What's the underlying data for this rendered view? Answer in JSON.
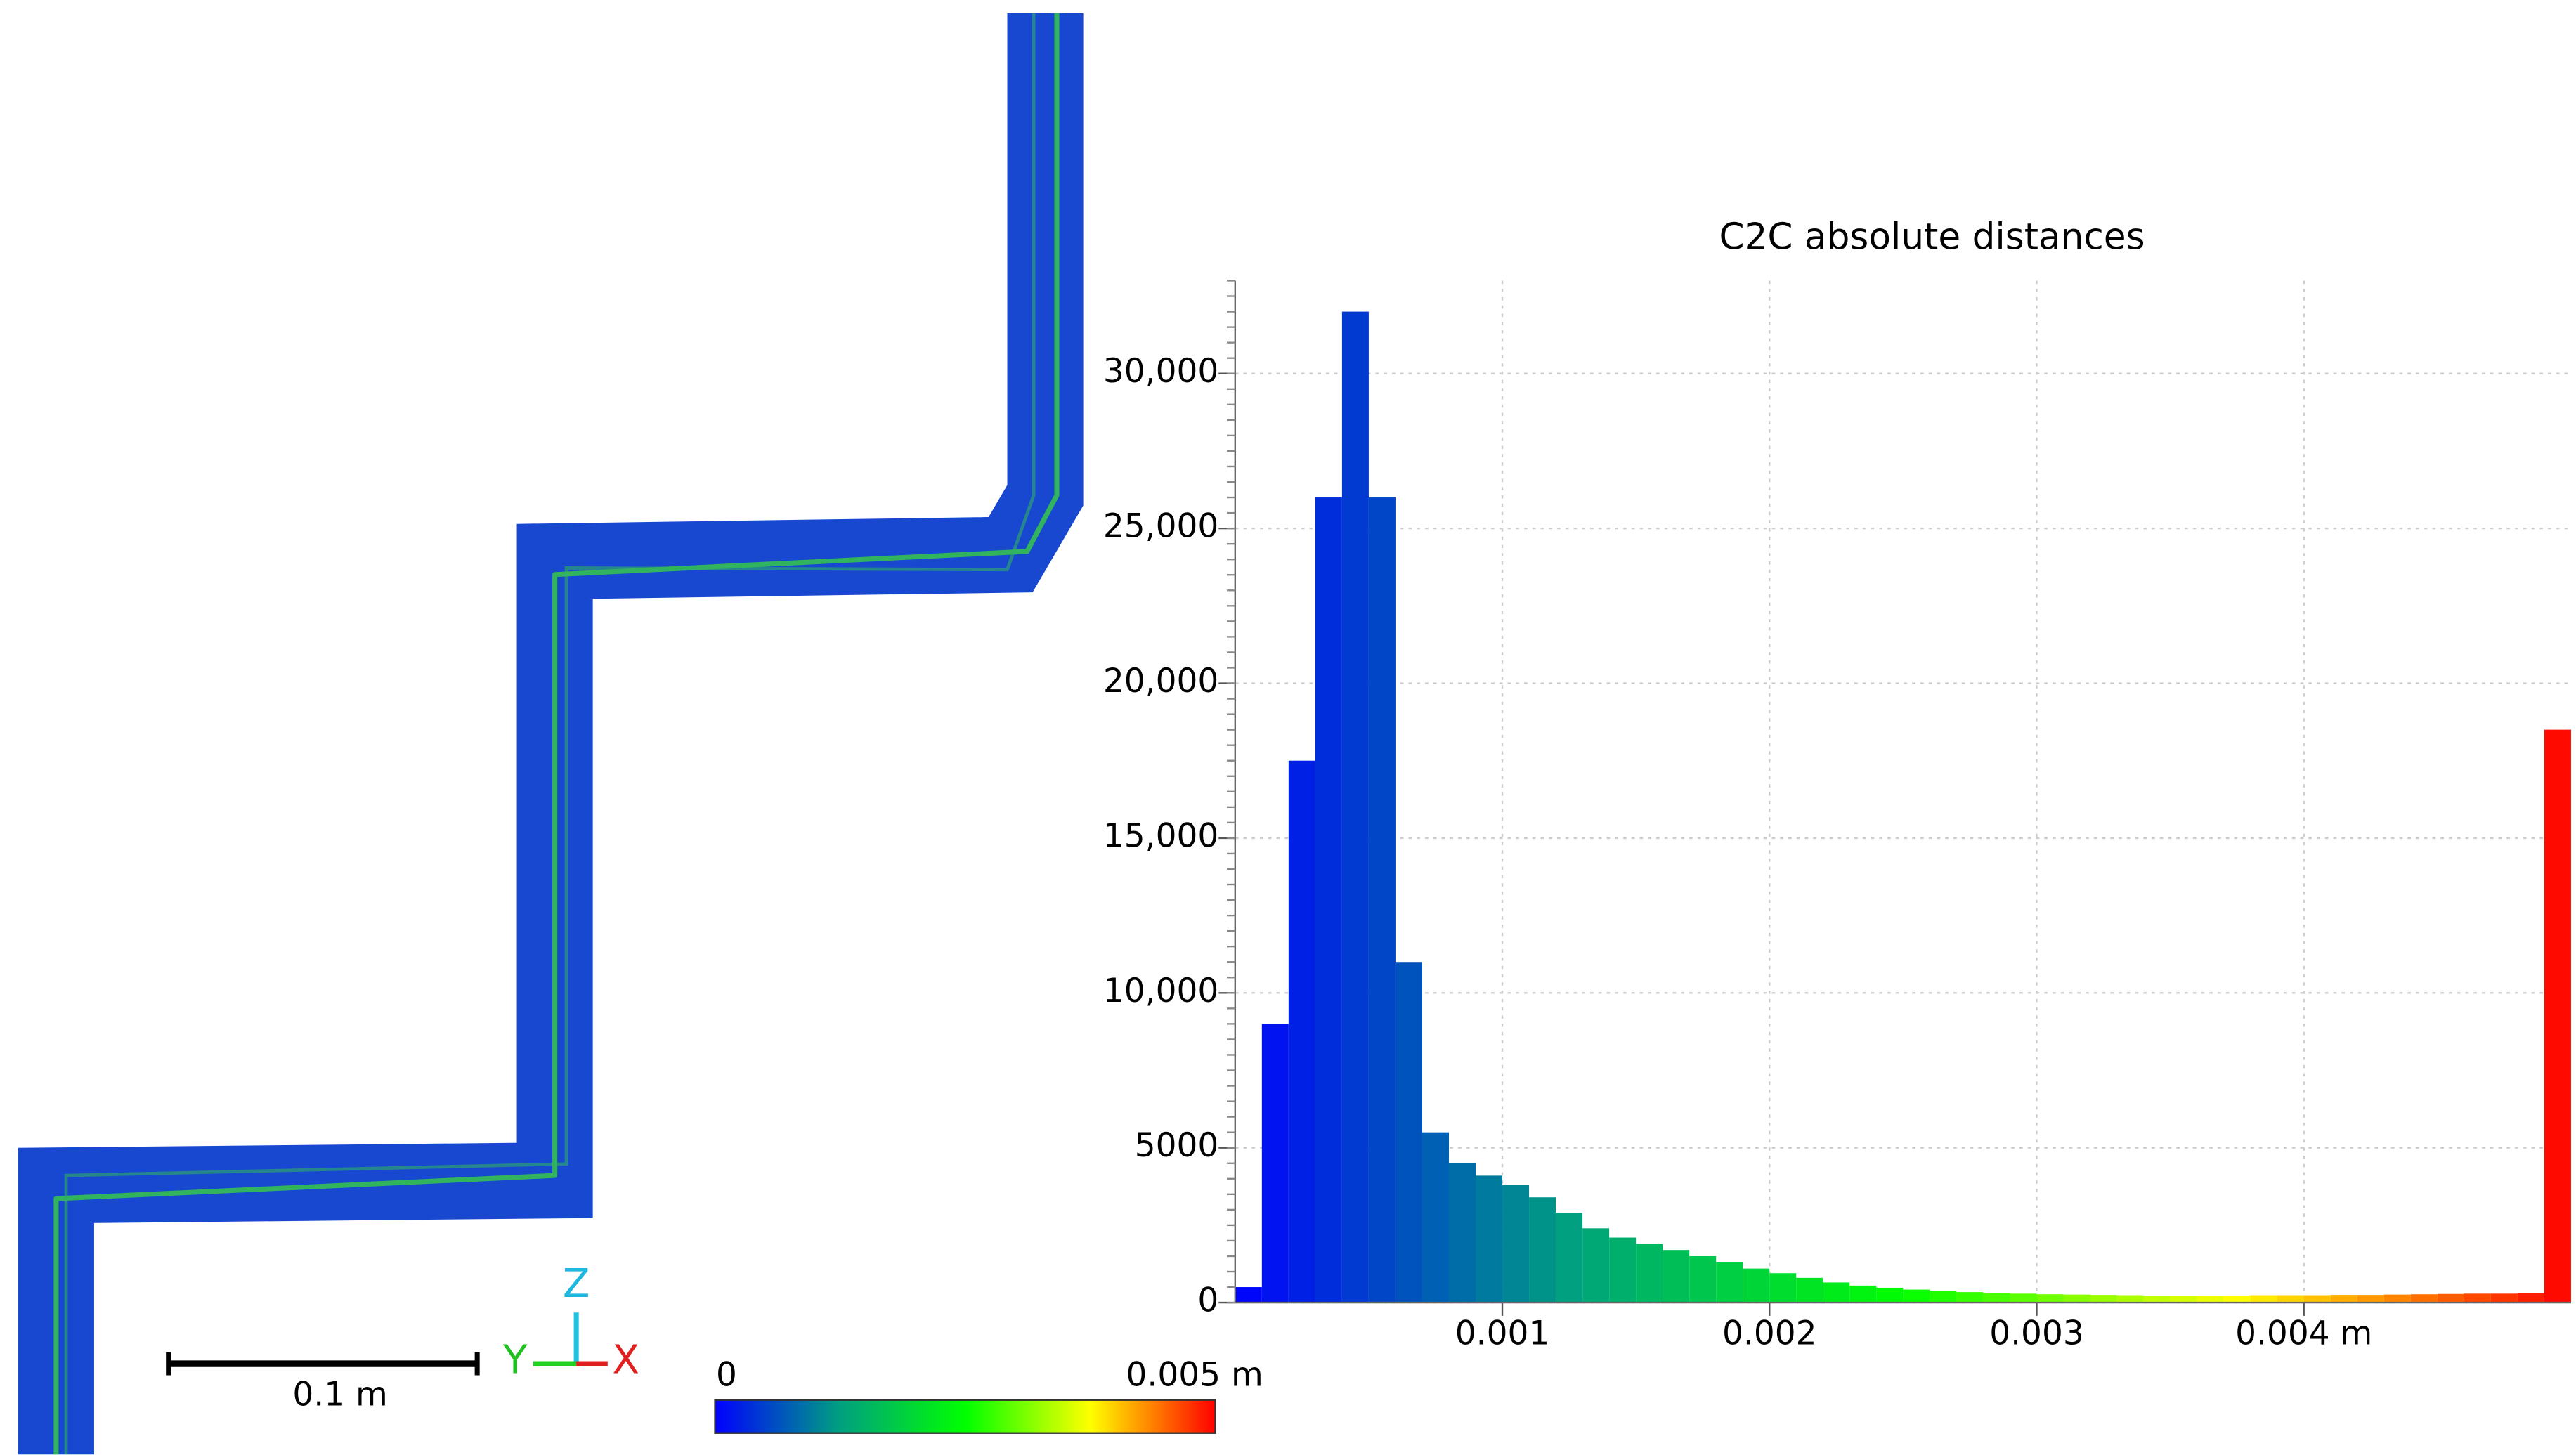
{
  "chart_data": {
    "type": "histogram",
    "title": "C2C absolute distances",
    "bins": [
      0,
      0.0001,
      0.0002,
      0.0003,
      0.0004,
      0.0005,
      0.0006,
      0.0007,
      0.0008,
      0.0009,
      0.001,
      0.0011,
      0.0012,
      0.0013,
      0.0014,
      0.0015,
      0.0016,
      0.0017,
      0.0018,
      0.0019,
      0.002,
      0.0021,
      0.0022,
      0.0023,
      0.0024,
      0.0025,
      0.0026,
      0.0027,
      0.0028,
      0.0029,
      0.003,
      0.0031,
      0.0032,
      0.0033,
      0.0034,
      0.0035,
      0.0036,
      0.0037,
      0.0038,
      0.0039,
      0.004,
      0.0041,
      0.0042,
      0.0043,
      0.0044,
      0.0045,
      0.0046,
      0.0047,
      0.0048,
      0.0049,
      0.005
    ],
    "values": [
      500,
      9000,
      17500,
      26000,
      32000,
      26000,
      11000,
      5500,
      4500,
      4100,
      3800,
      3400,
      2900,
      2400,
      2100,
      1900,
      1700,
      1500,
      1300,
      1100,
      950,
      800,
      650,
      550,
      480,
      420,
      380,
      340,
      310,
      290,
      270,
      260,
      250,
      240,
      230,
      230,
      230,
      230,
      240,
      240,
      240,
      250,
      250,
      260,
      270,
      280,
      290,
      290,
      300,
      18500
    ],
    "colors": [
      "#0000ff",
      "#00a080",
      "#00ff00",
      "#ffff00",
      "#ff0000"
    ],
    "xlim": [
      0,
      0.005
    ],
    "ylim": [
      0,
      33000
    ],
    "xticks": [
      0.001,
      0.002,
      0.003,
      {
        "value": 0.004,
        "label": "0.004 m"
      }
    ],
    "yticks": [
      0,
      5000,
      {
        "value": 10000,
        "label": "10,000"
      },
      {
        "value": 15000,
        "label": "15,000"
      },
      {
        "value": 20000,
        "label": "20,000"
      },
      {
        "value": 25000,
        "label": "25,000"
      },
      {
        "value": 30000,
        "label": "30,000"
      }
    ],
    "grid": true
  },
  "view": {
    "scale_bar_label": "0.1 m",
    "axes": {
      "z": "Z",
      "y": "Y",
      "x": "X"
    },
    "color_scale": {
      "min_label": "0",
      "max_label": "0.005 m"
    }
  }
}
